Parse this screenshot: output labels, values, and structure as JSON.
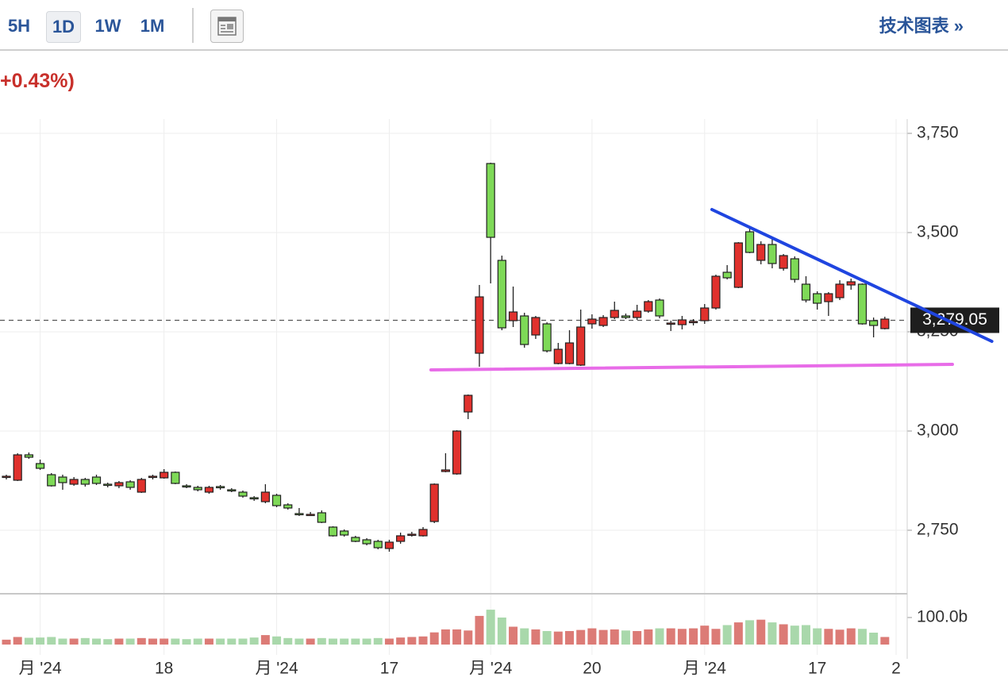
{
  "toolbar": {
    "buttons": [
      "5H",
      "1D",
      "1W",
      "1M"
    ],
    "selected": "1D",
    "link": "技术图表 »"
  },
  "change_text": "+0.43%)",
  "chart_data": {
    "type": "candlestick",
    "categories": [
      null,
      null,
      null,
      "月 '24",
      null,
      null,
      null,
      null,
      null,
      null,
      null,
      null,
      null,
      null,
      "18",
      null,
      null,
      null,
      null,
      null,
      null,
      null,
      null,
      null,
      "月 '24",
      null,
      null,
      null,
      null,
      null,
      null,
      null,
      null,
      null,
      "17",
      null,
      null,
      null,
      null,
      null,
      null,
      null,
      null,
      "月 '24",
      null,
      null,
      null,
      null,
      null,
      null,
      null,
      null,
      "20",
      null,
      null,
      null,
      null,
      null,
      null,
      null,
      null,
      null,
      "月 '24",
      null,
      null,
      null,
      null,
      null,
      null,
      null,
      null,
      null,
      "17",
      null,
      null,
      null,
      null,
      null,
      null,
      "2"
    ],
    "open": [
      2884,
      2876,
      2940,
      2918,
      2890,
      2884,
      2866,
      2878,
      2884,
      2866,
      2862,
      2872,
      2846,
      2884,
      2882,
      2896,
      2862,
      2858,
      2846,
      2860,
      2852,
      2846,
      2832,
      2822,
      2838,
      2814,
      2792,
      2790,
      2794,
      2758,
      2748,
      2732,
      2726,
      2722,
      2704,
      2722,
      2738,
      2736,
      2772,
      2898,
      2892,
      3048,
      3196,
      3674,
      3430,
      3278,
      3290,
      3242,
      3270,
      3170,
      3170,
      3166,
      3270,
      3266,
      3286,
      3290,
      3286,
      3302,
      3330,
      3272,
      3268,
      3274,
      3278,
      3310,
      3400,
      3362,
      3502,
      3430,
      3470,
      3410,
      3434,
      3370,
      3346,
      3326,
      3336,
      3368,
      3370,
      3278,
      3258,
      null
    ],
    "high": [
      2890,
      2944,
      2946,
      2928,
      2894,
      2890,
      2884,
      2882,
      2890,
      2870,
      2874,
      2876,
      2882,
      2890,
      2904,
      2898,
      2866,
      2862,
      2862,
      2864,
      2856,
      2850,
      2836,
      2866,
      2842,
      2818,
      2806,
      2796,
      2800,
      2760,
      2752,
      2736,
      2730,
      2726,
      2726,
      2744,
      2746,
      2758,
      2868,
      2944,
      3002,
      3092,
      3368,
      3676,
      3442,
      3364,
      3298,
      3290,
      3274,
      3222,
      3254,
      3306,
      3294,
      3292,
      3326,
      3296,
      3318,
      3330,
      3334,
      3278,
      3290,
      3282,
      3320,
      3394,
      3418,
      3476,
      3516,
      3478,
      3484,
      3446,
      3440,
      3390,
      3352,
      3350,
      3380,
      3384,
      3372,
      3286,
      3288,
      null
    ],
    "low": [
      2878,
      2874,
      2930,
      2902,
      2860,
      2852,
      2862,
      2860,
      2864,
      2858,
      2856,
      2852,
      2844,
      2878,
      2880,
      2866,
      2856,
      2848,
      2842,
      2852,
      2846,
      2832,
      2824,
      2818,
      2808,
      2802,
      2786,
      2786,
      2768,
      2734,
      2734,
      2720,
      2712,
      2702,
      2696,
      2716,
      2734,
      2734,
      2768,
      2896,
      2890,
      3030,
      3162,
      3372,
      3254,
      3262,
      3210,
      3232,
      3198,
      3168,
      3168,
      3164,
      3258,
      3262,
      3282,
      3282,
      3280,
      3298,
      3284,
      3252,
      3256,
      3266,
      3270,
      3306,
      3382,
      3360,
      3448,
      3420,
      3410,
      3404,
      3374,
      3324,
      3306,
      3290,
      3330,
      3356,
      3268,
      3236,
      3256,
      null
    ],
    "close": [
      2886,
      2940,
      2934,
      2906,
      2862,
      2870,
      2878,
      2866,
      2868,
      2864,
      2870,
      2858,
      2878,
      2886,
      2896,
      2868,
      2860,
      2852,
      2858,
      2858,
      2850,
      2836,
      2830,
      2846,
      2812,
      2806,
      2790,
      2790,
      2770,
      2736,
      2738,
      2722,
      2716,
      2706,
      2720,
      2736,
      2740,
      2752,
      2866,
      2902,
      3000,
      3090,
      3338,
      3488,
      3260,
      3300,
      3218,
      3286,
      3202,
      3206,
      3222,
      3262,
      3282,
      3286,
      3304,
      3286,
      3302,
      3326,
      3290,
      3272,
      3280,
      3276,
      3310,
      3390,
      3386,
      3474,
      3450,
      3470,
      3422,
      3442,
      3382,
      3330,
      3322,
      3346,
      3370,
      3376,
      3270,
      3266,
      3282,
      null
    ],
    "up_color": "#e0312d",
    "down_color": "#7ed957",
    "ylim": [
      2590,
      3786
    ],
    "yticks": [
      {
        "value": 2750,
        "label": "2,750"
      },
      {
        "value": 3000,
        "label": "3,000"
      },
      {
        "value": 3250,
        "label": "3,250"
      },
      {
        "value": 3500,
        "label": "3,500"
      },
      {
        "value": 3750,
        "label": "3,750"
      }
    ],
    "grid": true,
    "last_price": {
      "value": 3279.05,
      "label": "3,279.05"
    },
    "annotations": [
      {
        "color": "#1f45e0",
        "x": [
          62.65,
          87.5
        ],
        "y": [
          3558,
          3226
        ]
      },
      {
        "color": "#e86ce8",
        "x": [
          37.7,
          84
        ],
        "y": [
          3154,
          3168
        ]
      }
    ],
    "volume": {
      "values": [
        18,
        28,
        25,
        26,
        28,
        22,
        22,
        24,
        22,
        20,
        22,
        22,
        24,
        22,
        22,
        22,
        20,
        22,
        22,
        22,
        22,
        22,
        26,
        35,
        30,
        24,
        22,
        22,
        24,
        22,
        22,
        22,
        22,
        24,
        22,
        26,
        28,
        30,
        45,
        56,
        56,
        52,
        106,
        129,
        100,
        66,
        60,
        56,
        50,
        48,
        50,
        54,
        60,
        54,
        56,
        52,
        50,
        56,
        60,
        60,
        58,
        60,
        70,
        58,
        72,
        82,
        90,
        92,
        82,
        75,
        70,
        72,
        60,
        58,
        55,
        60,
        58,
        44,
        28,
        null
      ],
      "up_color": "#dc7b76",
      "down_color": "#a9d8ab",
      "ylim": [
        0,
        188
      ],
      "yticks": [
        {
          "value": 100,
          "label": "100.0b"
        }
      ]
    }
  }
}
